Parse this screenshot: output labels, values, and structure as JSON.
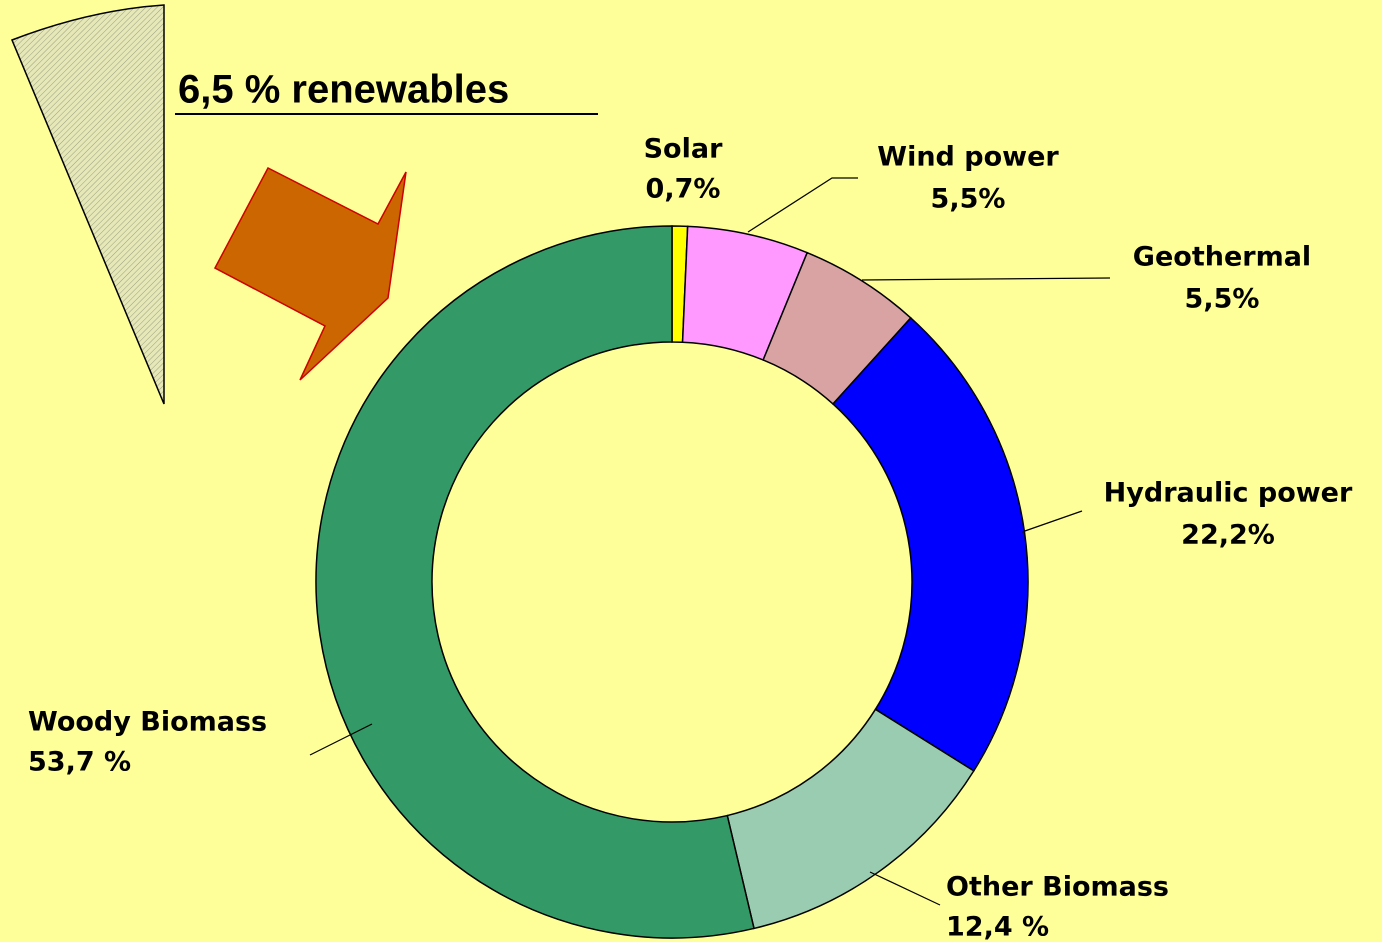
{
  "chart_data": {
    "type": "donut",
    "title": "6,5 % renewables",
    "categories": [
      "Solar",
      "Wind power",
      "Geothermal",
      "Hydraulic power",
      "Other Biomass",
      "Woody Biomass"
    ],
    "values": [
      0.7,
      5.5,
      5.5,
      22.2,
      12.4,
      53.7
    ],
    "value_labels": [
      "0,7%",
      "5,5%",
      "5,5%",
      "22,2%",
      "12,4 %",
      "53,7 %"
    ],
    "colors": [
      "#ffff00",
      "#ff99ff",
      "#d9a3a3",
      "#0000ff",
      "#99ccb0",
      "#339966"
    ]
  }
}
